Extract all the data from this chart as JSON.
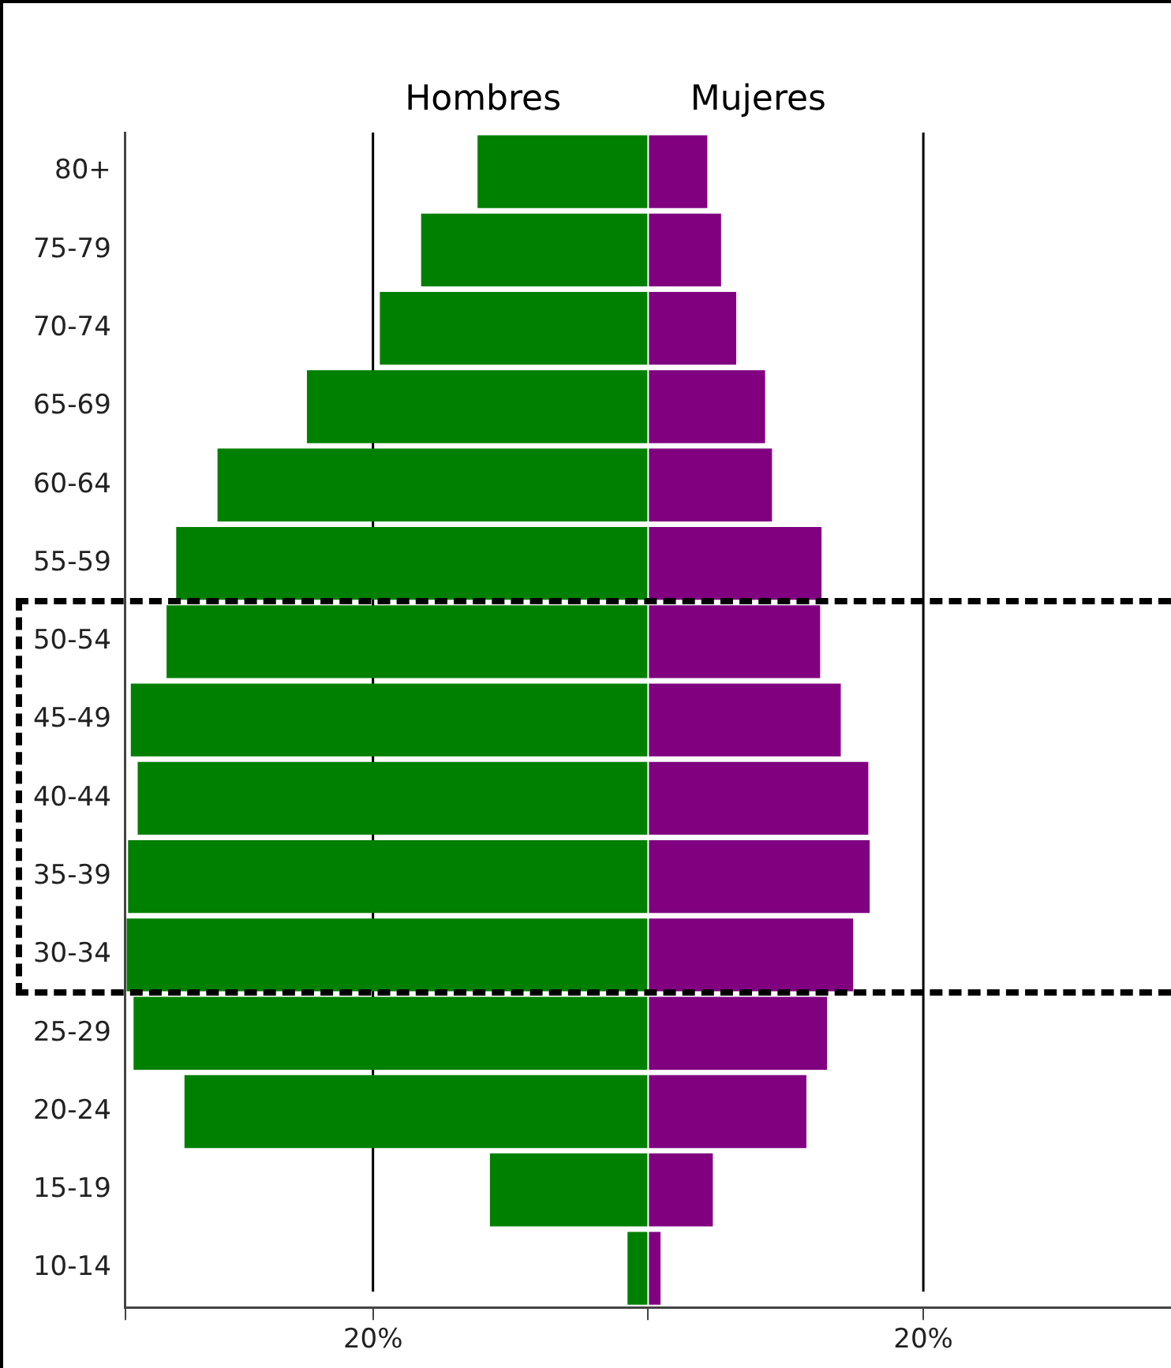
{
  "chart_data": {
    "type": "bar",
    "orientation": "horizontal",
    "stacked": true,
    "categories": [
      "80+",
      "75-79",
      "70-74",
      "65-69",
      "60-64",
      "55-59",
      "50-54",
      "45-49",
      "40-44",
      "35-39",
      "30-34",
      "25-29",
      "20-24",
      "15-19",
      "10-14"
    ],
    "series": [
      {
        "name": "Hombres",
        "color": "#008000",
        "values": [
          -12.4,
          -16.5,
          -19.5,
          -24.8,
          -31.3,
          -34.3,
          -35.0,
          -37.6,
          -37.1,
          -37.8,
          -37.9,
          -37.4,
          -33.7,
          -11.5,
          -1.5
        ]
      },
      {
        "name": "Mujeres",
        "color": "#800080",
        "values": [
          4.3,
          5.3,
          6.4,
          8.5,
          9.0,
          12.6,
          12.5,
          14.0,
          16.0,
          16.1,
          14.9,
          13.0,
          11.5,
          4.7,
          0.9
        ]
      }
    ],
    "xlim": [
      -38,
      38
    ],
    "xticks": [
      {
        "value": -38,
        "label": null
      },
      {
        "value": -20,
        "label": "20%"
      },
      {
        "value": 0,
        "label": null
      },
      {
        "value": 20,
        "label": "20%"
      }
    ],
    "grid": "x",
    "legend": false
  }
}
